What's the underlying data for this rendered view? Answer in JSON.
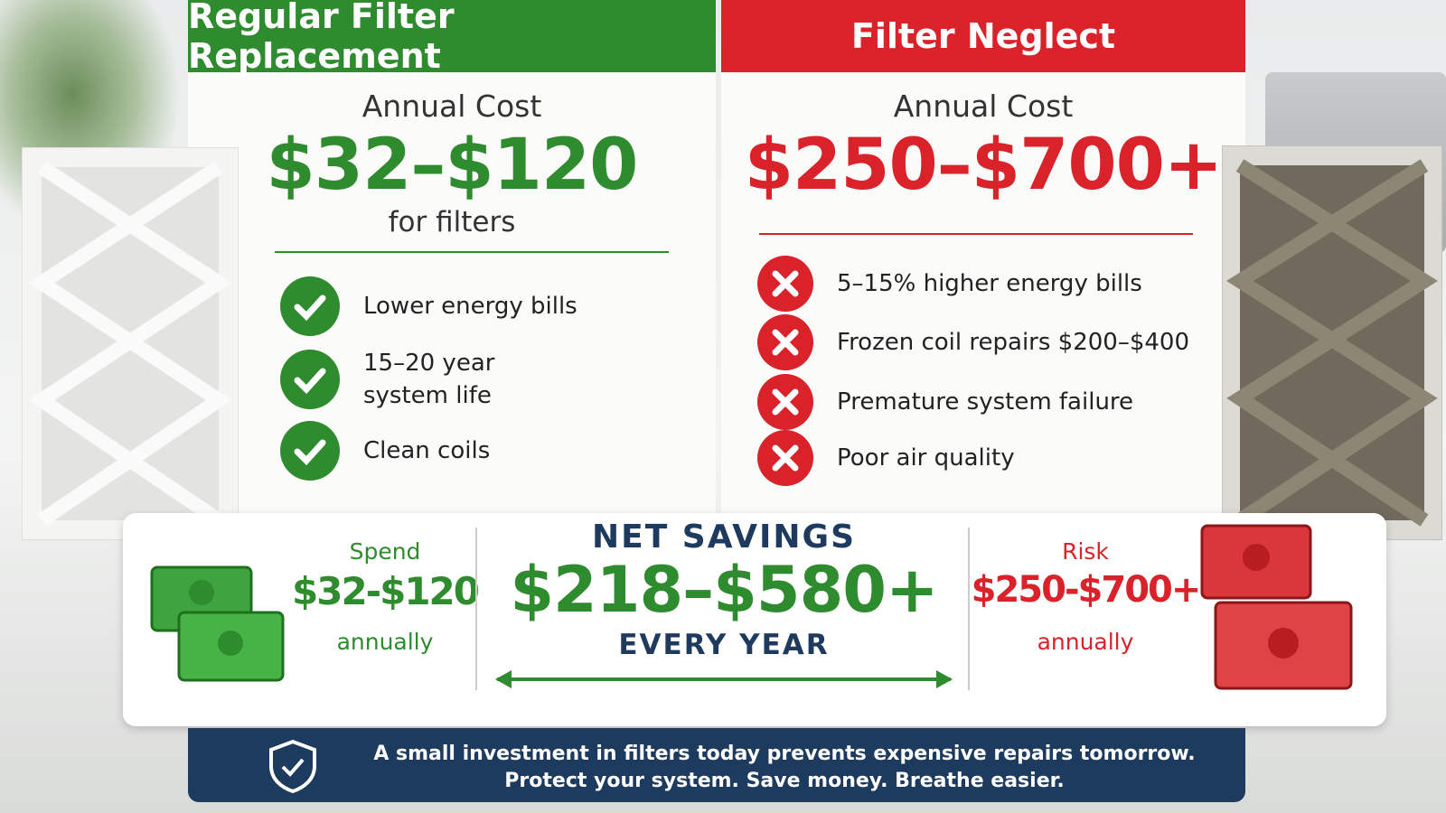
{
  "left": {
    "header": "Regular Filter Replacement",
    "cost_label": "Annual Cost",
    "cost": "$32–$120",
    "cost_note": "for filters",
    "items": [
      "Lower energy bills",
      "15–20 year system life",
      "Clean coils"
    ]
  },
  "right": {
    "header": "Filter Neglect",
    "cost_label": "Annual Cost",
    "cost": "$250–$700+",
    "items": [
      "5–15% higher energy bills",
      "Frozen coil repairs $200–$400",
      "Premature system failure",
      "Poor air quality"
    ]
  },
  "savings": {
    "spend": {
      "label": "Spend",
      "amount": "$32-$120",
      "note": "annually"
    },
    "net": {
      "title": "NET SAVINGS",
      "amount": "$218–$580+",
      "note": "EVERY YEAR"
    },
    "risk": {
      "label": "Risk",
      "amount": "$250-$700+",
      "note": "annually"
    }
  },
  "footer": {
    "lines": [
      "A small investment in filters today prevents expensive repairs tomorrow.",
      "Protect your system. Save money. Breathe easier."
    ]
  }
}
